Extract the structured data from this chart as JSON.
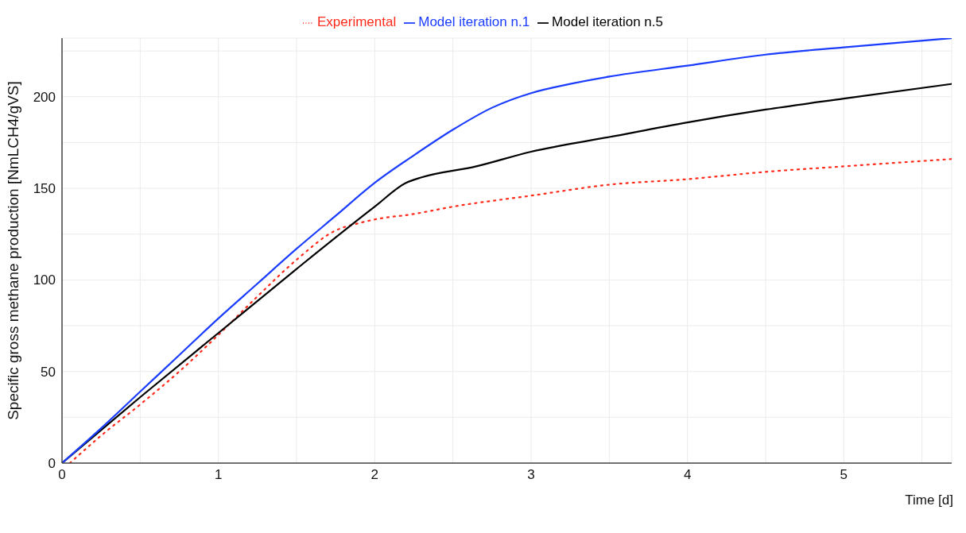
{
  "chart_data": {
    "type": "line",
    "xlabel": "Time [d]",
    "ylabel": "Specific gross methane production [NmLCH4/gVS]",
    "xlim": [
      0,
      5.69
    ],
    "ylim": [
      0,
      232
    ],
    "xticks": [
      0,
      {
        "value": 0.5,
        "label": null
      },
      1,
      {
        "value": 1.5,
        "label": null
      },
      2,
      {
        "value": 2.5,
        "label": null
      },
      3,
      {
        "value": 3.5,
        "label": null
      },
      4,
      {
        "value": 4.5,
        "label": null
      },
      5,
      {
        "value": 5.5,
        "label": null
      }
    ],
    "yticks": [
      0,
      {
        "value": 25,
        "label": null
      },
      50,
      {
        "value": 75,
        "label": null
      },
      100,
      {
        "value": 125,
        "label": null
      },
      150,
      {
        "value": 175,
        "label": null
      },
      200,
      {
        "value": 225,
        "label": null
      }
    ],
    "grid": true,
    "legend": "top",
    "marker": "none",
    "series": [
      {
        "name": "Experimental",
        "color": "#ff2a1a",
        "line_style": "dotted",
        "x": [
          0.05,
          0.25,
          0.5,
          0.75,
          1,
          1.25,
          1.5,
          1.75,
          1.9,
          2,
          2.25,
          2.5,
          3,
          3.5,
          4,
          4.5,
          5,
          5.69
        ],
        "values": [
          0,
          15,
          32,
          50,
          70,
          91,
          111,
          127,
          131,
          133,
          136,
          140,
          146,
          152,
          155,
          159,
          162,
          166
        ]
      },
      {
        "name": "Model iteration n.5",
        "color": "#000000",
        "line_style": "solid",
        "x": [
          0,
          0.5,
          1,
          1.5,
          2,
          2.2,
          2.3,
          2.65,
          3,
          3.5,
          4,
          4.5,
          5,
          5.69
        ],
        "values": [
          0,
          36,
          71,
          106,
          140,
          153,
          156,
          162,
          170,
          178,
          186,
          193,
          199,
          207
        ]
      },
      {
        "name": "Model iteration n.1",
        "color": "#1a3cff",
        "line_style": "solid",
        "x": [
          0,
          0.25,
          0.5,
          0.75,
          1,
          1.25,
          1.5,
          1.75,
          2,
          2.25,
          2.5,
          2.75,
          3,
          3.25,
          3.5,
          4,
          4.5,
          5,
          5.69
        ],
        "values": [
          0,
          19,
          39,
          59,
          79,
          98,
          117,
          135,
          153,
          168,
          182,
          194,
          202,
          207,
          211,
          217,
          223,
          227,
          232
        ]
      }
    ]
  }
}
